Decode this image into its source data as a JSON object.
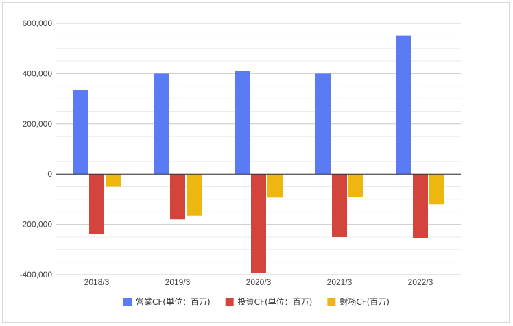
{
  "chart_data": {
    "type": "bar",
    "categories": [
      "2018/3",
      "2019/3",
      "2020/3",
      "2021/3",
      "2022/3"
    ],
    "series": [
      {
        "name": "営業CF(単位：百万)",
        "color": "#5b7bf5",
        "values": [
          333000,
          400000,
          412000,
          400000,
          552000
        ]
      },
      {
        "name": "投資CF(単位：百万)",
        "color": "#d2443c",
        "values": [
          -237000,
          -180000,
          -393000,
          -250000,
          -255000
        ]
      },
      {
        "name": "財務CF(百万)",
        "color": "#eeb70f",
        "values": [
          -50000,
          -165000,
          -93000,
          -92000,
          -120000
        ]
      }
    ],
    "y_ticks": [
      "600,000",
      "400,000",
      "200,000",
      "0",
      "-200,000",
      "-400,000"
    ],
    "y_tick_values": [
      600000,
      400000,
      200000,
      0,
      -200000,
      -400000
    ],
    "ylim": [
      -400000,
      600000
    ],
    "grid": true,
    "legend_position": "bottom",
    "title": "",
    "xlabel": "",
    "ylabel": ""
  }
}
